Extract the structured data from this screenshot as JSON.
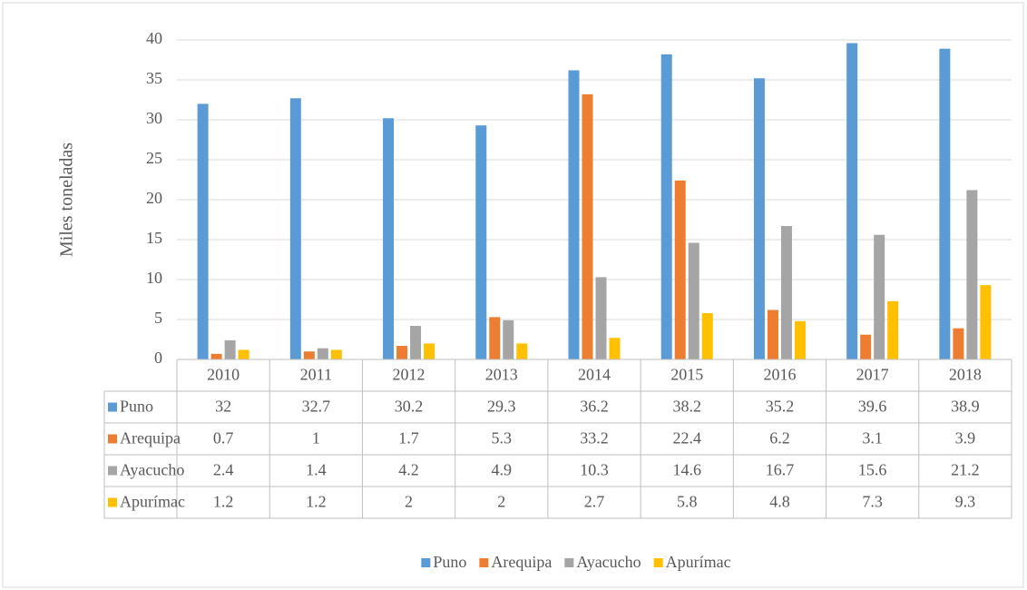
{
  "chart_data": {
    "type": "bar",
    "y_label": "Miles toneladas",
    "categories": [
      "2010",
      "2011",
      "2012",
      "2013",
      "2014",
      "2015",
      "2016",
      "2017",
      "2018"
    ],
    "series": [
      {
        "name": "Puno",
        "color": "#5b9bd5",
        "values": [
          32,
          32.7,
          30.2,
          29.3,
          36.2,
          38.2,
          35.2,
          39.6,
          38.9
        ]
      },
      {
        "name": "Arequipa",
        "color": "#ed7d31",
        "values": [
          0.7,
          1,
          1.7,
          5.3,
          33.2,
          22.4,
          6.2,
          3.1,
          3.9
        ]
      },
      {
        "name": "Ayacucho",
        "color": "#a5a5a5",
        "values": [
          2.4,
          1.4,
          4.2,
          4.9,
          10.3,
          14.6,
          16.7,
          15.6,
          21.2
        ]
      },
      {
        "name": "Apurímac",
        "color": "#ffc000",
        "values": [
          1.2,
          1.2,
          2,
          2,
          2.7,
          5.8,
          4.8,
          7.3,
          9.3
        ]
      }
    ],
    "ylim": [
      0,
      40
    ],
    "yticks": [
      0,
      5,
      10,
      15,
      20,
      25,
      30,
      35,
      40
    ],
    "grid": true,
    "data_table": true,
    "legend": "bottom"
  }
}
